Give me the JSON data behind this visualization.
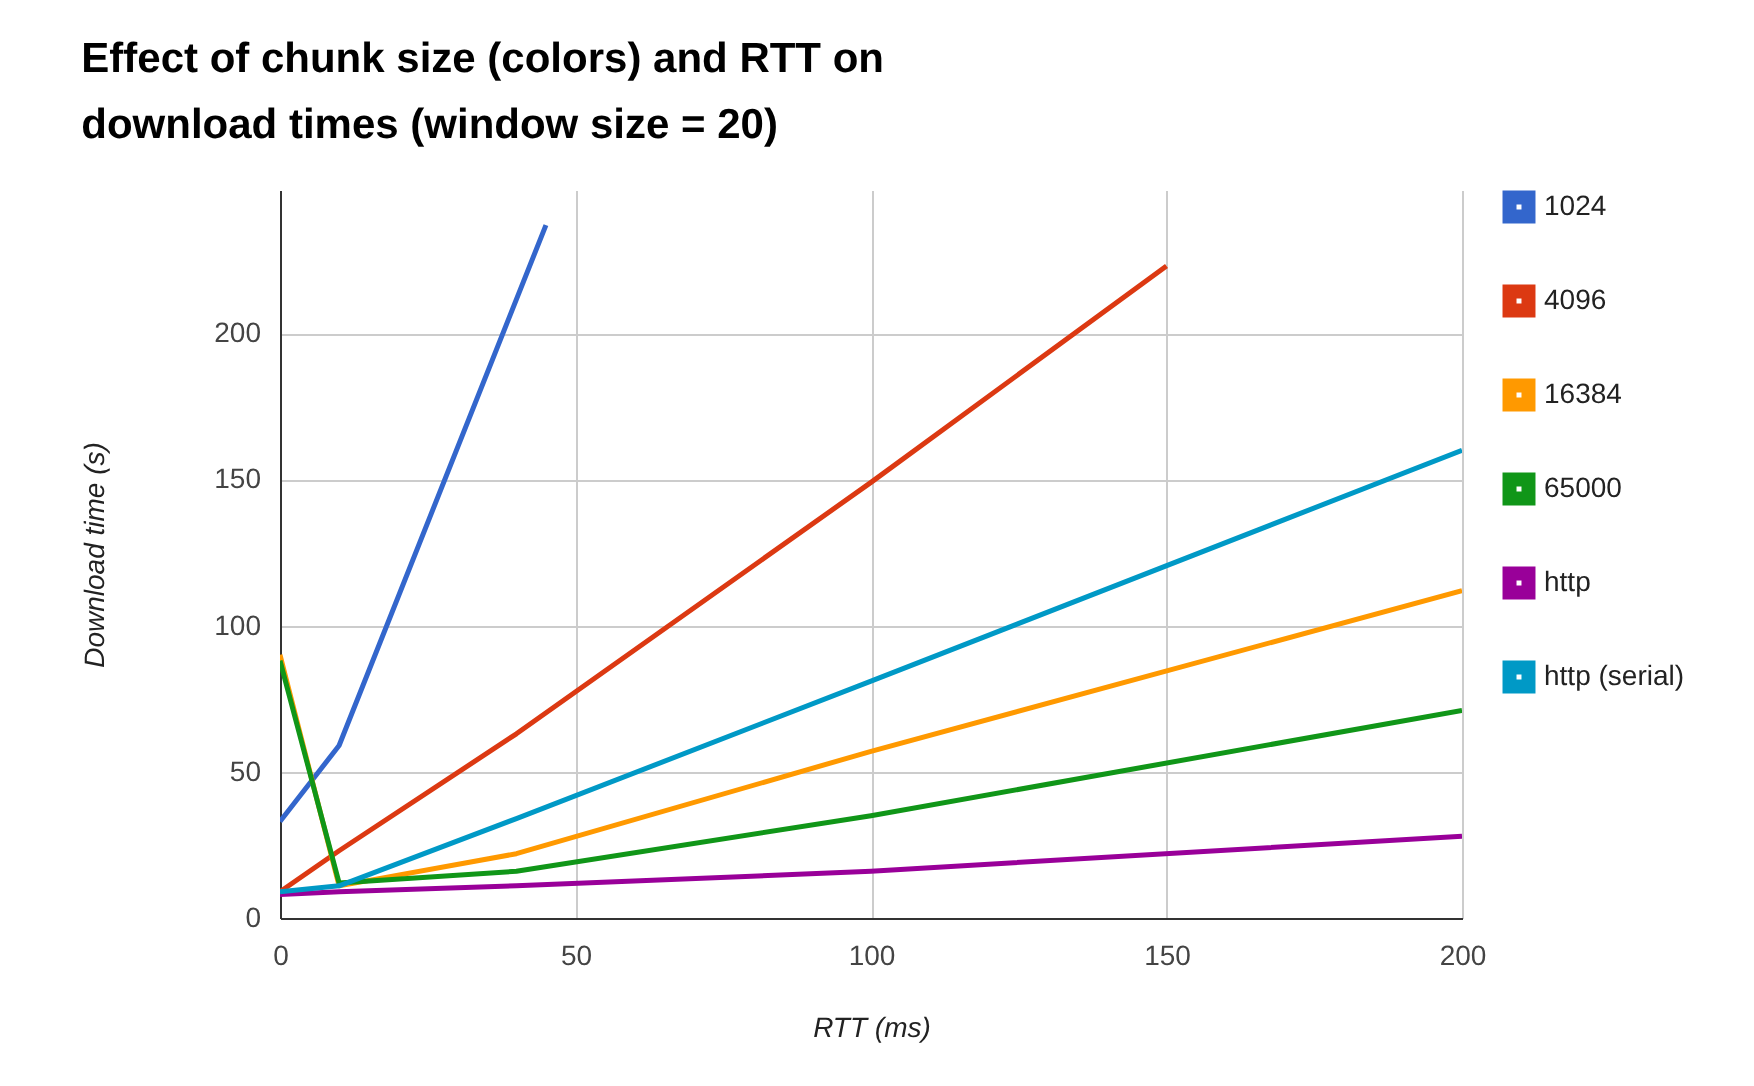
{
  "chart_data": {
    "type": "line",
    "title": "Effect of chunk size (colors) and RTT on download times (window size = 20)",
    "xlabel": "RTT (ms)",
    "ylabel": "Download time (s)",
    "xlim": [
      0,
      200
    ],
    "xticks": [
      0,
      50,
      100,
      150,
      200
    ],
    "ylim": [
      0,
      249
    ],
    "yticks": [
      0,
      50,
      100,
      150,
      200
    ],
    "grid": true,
    "legend": "right",
    "series": [
      {
        "name": "1024",
        "color": "#3366cc",
        "x": [
          0,
          10,
          45
        ],
        "values": [
          33,
          59,
          237
        ]
      },
      {
        "name": "4096",
        "color": "#dc3912",
        "x": [
          0,
          10,
          40,
          100,
          150
        ],
        "values": [
          9,
          23,
          63,
          149,
          223
        ]
      },
      {
        "name": "16384",
        "color": "#ff9900",
        "x": [
          0,
          10,
          40,
          100,
          200
        ],
        "values": [
          90,
          11,
          22,
          57,
          112
        ]
      },
      {
        "name": "65000",
        "color": "#109618",
        "x": [
          0,
          10,
          40,
          100,
          200
        ],
        "values": [
          88,
          12,
          16,
          35,
          71
        ]
      },
      {
        "name": "http",
        "color": "#990099",
        "x": [
          0,
          10,
          40,
          100,
          200
        ],
        "values": [
          8,
          9,
          11,
          16,
          28
        ]
      },
      {
        "name": "http (serial)",
        "color": "#0099c6",
        "x": [
          0,
          10,
          40,
          100,
          200
        ],
        "values": [
          9,
          11,
          34,
          81,
          160
        ]
      }
    ]
  }
}
